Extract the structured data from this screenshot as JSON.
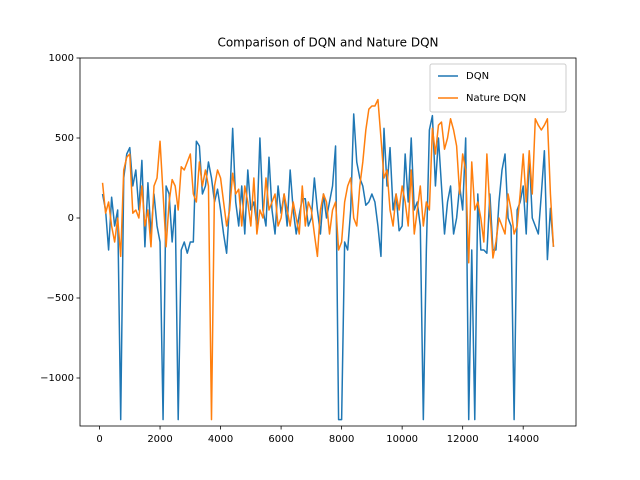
{
  "chart_data": {
    "type": "line",
    "title": "Comparison of DQN and Nature DQN",
    "x": [
      100,
      200,
      300,
      400,
      500,
      600,
      700,
      800,
      900,
      1000,
      1100,
      1200,
      1300,
      1400,
      1500,
      1600,
      1700,
      1800,
      1900,
      2000,
      2100,
      2200,
      2300,
      2400,
      2500,
      2600,
      2700,
      2800,
      2900,
      3000,
      3100,
      3200,
      3300,
      3400,
      3500,
      3600,
      3700,
      3800,
      3900,
      4000,
      4100,
      4200,
      4300,
      4400,
      4500,
      4600,
      4700,
      4800,
      4900,
      5000,
      5100,
      5200,
      5300,
      5400,
      5500,
      5600,
      5700,
      5800,
      5900,
      6000,
      6100,
      6200,
      6300,
      6400,
      6500,
      6600,
      6700,
      6800,
      6900,
      7000,
      7100,
      7200,
      7300,
      7400,
      7500,
      7600,
      7700,
      7800,
      7900,
      8000,
      8100,
      8200,
      8300,
      8400,
      8500,
      8600,
      8700,
      8800,
      8900,
      9000,
      9100,
      9200,
      9300,
      9400,
      9500,
      9600,
      9700,
      9800,
      9900,
      10000,
      10100,
      10200,
      10300,
      10400,
      10500,
      10600,
      10700,
      10800,
      10900,
      11000,
      11100,
      11200,
      11300,
      11400,
      11500,
      11600,
      11700,
      11800,
      11900,
      12000,
      12100,
      12200,
      12300,
      12400,
      12500,
      12600,
      12700,
      12800,
      12900,
      13000,
      13100,
      13200,
      13300,
      13400,
      13500,
      13600,
      13700,
      13800,
      13900,
      14000,
      14100,
      14200,
      14300,
      14400,
      14500,
      14600,
      14700,
      14800,
      14900,
      15000
    ],
    "series": [
      {
        "name": "DQN",
        "color": "#1f77b4",
        "values": [
          150,
          50,
          -200,
          130,
          -50,
          50,
          -1260,
          250,
          400,
          440,
          200,
          300,
          50,
          360,
          -180,
          220,
          -100,
          150,
          -50,
          -150,
          -1260,
          200,
          150,
          -150,
          80,
          -1260,
          -200,
          -150,
          -220,
          -150,
          -150,
          480,
          450,
          150,
          200,
          350,
          250,
          100,
          180,
          50,
          -100,
          -220,
          100,
          560,
          100,
          -50,
          200,
          -100,
          300,
          50,
          100,
          -50,
          500,
          50,
          -50,
          380,
          50,
          -100,
          200,
          30,
          150,
          -50,
          300,
          50,
          -100,
          20,
          120,
          120,
          -50,
          0,
          250,
          50,
          -100,
          150,
          0,
          100,
          200,
          450,
          -1260,
          -1260,
          -150,
          -200,
          50,
          650,
          350,
          250,
          200,
          80,
          100,
          150,
          100,
          -50,
          -240,
          560,
          200,
          440,
          50,
          150,
          -80,
          -50,
          400,
          100,
          500,
          50,
          100,
          -50,
          -1260,
          -200,
          550,
          640,
          200,
          500,
          200,
          -100,
          100,
          200,
          -100,
          0,
          200,
          50,
          500,
          -1260,
          -200,
          -1260,
          150,
          -200,
          -200,
          -220,
          150,
          -200,
          -200,
          100,
          300,
          400,
          0,
          -50,
          -1260,
          50,
          100,
          200,
          -100,
          400,
          0,
          -50,
          -100,
          150,
          420,
          -260,
          60,
          -180
        ]
      },
      {
        "name": "Nature DQN",
        "color": "#ff7f0e",
        "values": [
          220,
          30,
          100,
          -50,
          -150,
          0,
          -240,
          300,
          380,
          400,
          30,
          50,
          0,
          200,
          -50,
          50,
          -180,
          200,
          250,
          480,
          150,
          -180,
          100,
          240,
          200,
          50,
          320,
          300,
          350,
          400,
          150,
          100,
          350,
          200,
          300,
          200,
          -1260,
          200,
          300,
          250,
          100,
          -50,
          50,
          280,
          150,
          180,
          -50,
          200,
          100,
          -50,
          250,
          -100,
          50,
          0,
          250,
          50,
          100,
          150,
          -50,
          0,
          150,
          50,
          -50,
          100,
          0,
          -100,
          200,
          -50,
          100,
          50,
          -100,
          -240,
          50,
          150,
          100,
          -100,
          50,
          100,
          -200,
          -150,
          100,
          200,
          250,
          0,
          -50,
          200,
          350,
          550,
          680,
          700,
          700,
          740,
          500,
          250,
          300,
          50,
          -50,
          150,
          50,
          200,
          100,
          -50,
          300,
          -100,
          50,
          200,
          -50,
          100,
          50,
          560,
          400,
          580,
          600,
          430,
          500,
          620,
          550,
          450,
          150,
          400,
          300,
          -280,
          350,
          50,
          100,
          0,
          -150,
          400,
          50,
          -250,
          -150,
          0,
          -50,
          -100,
          150,
          50,
          -100,
          -50,
          150,
          400,
          100,
          420,
          150,
          620,
          580,
          550,
          580,
          620,
          150,
          -180
        ]
      }
    ],
    "xlim": [
      -645,
      15745
    ],
    "ylim": [
      -1300,
      1000
    ],
    "xticks": [
      0,
      2000,
      4000,
      6000,
      8000,
      10000,
      12000,
      14000
    ],
    "yticks": [
      {
        "value": -1000,
        "label": "−1000"
      },
      {
        "value": -500,
        "label": "−500"
      },
      0,
      500,
      1000
    ],
    "legend": "upper right"
  }
}
